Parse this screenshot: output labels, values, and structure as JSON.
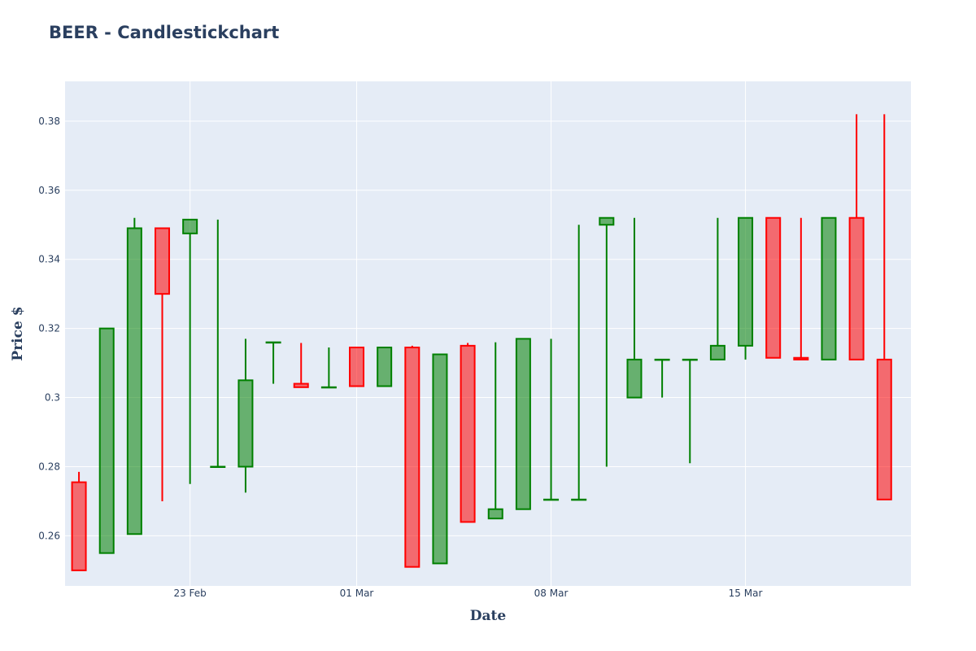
{
  "chart_data": {
    "type": "candlestick",
    "title": "BEER - Candlestickchart",
    "xlabel": "Date",
    "ylabel": "Price $",
    "ylim": [
      0.2455,
      0.3915
    ],
    "x_tick_dates": [
      "2021-02-23",
      "2021-03-01",
      "2021-03-08",
      "2021-03-15"
    ],
    "x_tick_labels": [
      "23 Feb",
      "01 Mar",
      "08 Mar",
      "15 Mar"
    ],
    "y_ticks": [
      0.26,
      0.28,
      0.3,
      0.32,
      0.34,
      0.36,
      0.38
    ],
    "y_tick_labels": [
      "0.26",
      "0.28",
      "0.3",
      "0.32",
      "0.34",
      "0.36",
      "0.38"
    ],
    "grid": true,
    "colors": {
      "increasing": "#008000",
      "increasing_fill": "rgba(0,128,0,0.55)",
      "decreasing": "#ff0000",
      "decreasing_fill": "rgba(255,0,0,0.55)",
      "plot_bg": "#e5ecf6",
      "grid": "#ffffff",
      "text": "#2a3f5f"
    },
    "candles": [
      {
        "date": "2021-02-19",
        "open": 0.2755,
        "high": 0.2785,
        "low": 0.25,
        "close": 0.25
      },
      {
        "date": "2021-02-20",
        "open": 0.255,
        "high": 0.32,
        "low": 0.255,
        "close": 0.32
      },
      {
        "date": "2021-02-21",
        "open": 0.2605,
        "high": 0.352,
        "low": 0.2605,
        "close": 0.349
      },
      {
        "date": "2021-02-22",
        "open": 0.349,
        "high": 0.349,
        "low": 0.27,
        "close": 0.33
      },
      {
        "date": "2021-02-23",
        "open": 0.3475,
        "high": 0.3515,
        "low": 0.275,
        "close": 0.3515
      },
      {
        "date": "2021-02-24",
        "open": 0.28,
        "high": 0.3515,
        "low": 0.28,
        "close": 0.28
      },
      {
        "date": "2021-02-25",
        "open": 0.28,
        "high": 0.317,
        "low": 0.2725,
        "close": 0.305
      },
      {
        "date": "2021-02-26",
        "open": 0.316,
        "high": 0.316,
        "low": 0.304,
        "close": 0.316
      },
      {
        "date": "2021-02-27",
        "open": 0.304,
        "high": 0.3158,
        "low": 0.303,
        "close": 0.303
      },
      {
        "date": "2021-02-28",
        "open": 0.303,
        "high": 0.3145,
        "low": 0.303,
        "close": 0.303
      },
      {
        "date": "2021-03-01",
        "open": 0.3145,
        "high": 0.3145,
        "low": 0.3033,
        "close": 0.3033
      },
      {
        "date": "2021-03-02",
        "open": 0.3033,
        "high": 0.3145,
        "low": 0.3033,
        "close": 0.3145
      },
      {
        "date": "2021-03-03",
        "open": 0.3145,
        "high": 0.315,
        "low": 0.251,
        "close": 0.251
      },
      {
        "date": "2021-03-04",
        "open": 0.252,
        "high": 0.3125,
        "low": 0.252,
        "close": 0.3125
      },
      {
        "date": "2021-03-05",
        "open": 0.315,
        "high": 0.3158,
        "low": 0.264,
        "close": 0.264
      },
      {
        "date": "2021-03-06",
        "open": 0.265,
        "high": 0.316,
        "low": 0.265,
        "close": 0.2677
      },
      {
        "date": "2021-03-07",
        "open": 0.2677,
        "high": 0.317,
        "low": 0.2677,
        "close": 0.317
      },
      {
        "date": "2021-03-08",
        "open": 0.2705,
        "high": 0.317,
        "low": 0.2705,
        "close": 0.2705
      },
      {
        "date": "2021-03-09",
        "open": 0.2705,
        "high": 0.35,
        "low": 0.2705,
        "close": 0.2705
      },
      {
        "date": "2021-03-10",
        "open": 0.35,
        "high": 0.352,
        "low": 0.28,
        "close": 0.352
      },
      {
        "date": "2021-03-11",
        "open": 0.3,
        "high": 0.352,
        "low": 0.3,
        "close": 0.311
      },
      {
        "date": "2021-03-12",
        "open": 0.311,
        "high": 0.311,
        "low": 0.3,
        "close": 0.311
      },
      {
        "date": "2021-03-13",
        "open": 0.311,
        "high": 0.311,
        "low": 0.281,
        "close": 0.311
      },
      {
        "date": "2021-03-14",
        "open": 0.311,
        "high": 0.352,
        "low": 0.311,
        "close": 0.315
      },
      {
        "date": "2021-03-15",
        "open": 0.315,
        "high": 0.352,
        "low": 0.311,
        "close": 0.352
      },
      {
        "date": "2021-03-16",
        "open": 0.352,
        "high": 0.352,
        "low": 0.3115,
        "close": 0.3115
      },
      {
        "date": "2021-03-17",
        "open": 0.3115,
        "high": 0.352,
        "low": 0.311,
        "close": 0.311
      },
      {
        "date": "2021-03-18",
        "open": 0.311,
        "high": 0.352,
        "low": 0.311,
        "close": 0.352
      },
      {
        "date": "2021-03-19",
        "open": 0.352,
        "high": 0.382,
        "low": 0.311,
        "close": 0.311
      },
      {
        "date": "2021-03-20",
        "open": 0.311,
        "high": 0.382,
        "low": 0.2705,
        "close": 0.2705
      }
    ]
  }
}
